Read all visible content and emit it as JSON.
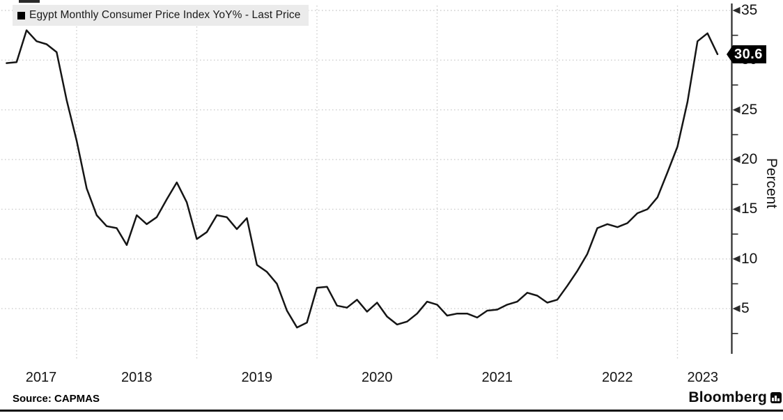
{
  "legend": {
    "label": "Egypt Monthly Consumer Price Index YoY% - Last Price",
    "marker_color": "#000000"
  },
  "last_price": {
    "label": "30.6"
  },
  "y_axis_title": "Percent",
  "footer": {
    "source": "Source: CAPMAS",
    "brand": "Bloomberg",
    "brand_icon": "bloomberg-terminal-icon"
  },
  "colors": {
    "line": "#151515",
    "grid": "#cccccc",
    "axis": "#2b2b2b",
    "legend_bg": "#ebebeb",
    "badge_bg": "#000000",
    "badge_text": "#ffffff"
  },
  "chart_data": {
    "type": "line",
    "title": "Egypt Monthly Consumer Price Index YoY% - Last Price",
    "xlabel": "",
    "ylabel": "Percent",
    "frequency": "monthly",
    "start_month": "2017-05",
    "end_month": "2023-04",
    "values": [
      29.7,
      29.8,
      33.0,
      31.9,
      31.6,
      30.8,
      26.0,
      21.9,
      17.1,
      14.4,
      13.3,
      13.1,
      11.4,
      14.4,
      13.5,
      14.2,
      16.0,
      17.7,
      15.7,
      12.0,
      12.7,
      14.4,
      14.2,
      13.0,
      14.1,
      9.4,
      8.7,
      7.5,
      4.8,
      3.1,
      3.6,
      7.1,
      7.2,
      5.3,
      5.1,
      5.9,
      4.7,
      5.6,
      4.2,
      3.4,
      3.7,
      4.5,
      5.7,
      5.4,
      4.3,
      4.5,
      4.5,
      4.1,
      4.8,
      4.9,
      5.4,
      5.7,
      6.6,
      6.3,
      5.6,
      5.9,
      7.3,
      8.8,
      10.5,
      13.1,
      13.5,
      13.2,
      13.6,
      14.6,
      15.0,
      16.2,
      18.7,
      21.3,
      25.8,
      31.9,
      32.7,
      30.6
    ],
    "last_value": 30.6,
    "yticks": [
      5,
      10,
      15,
      20,
      25,
      30,
      35
    ],
    "minor_ytick_step": 2.5,
    "ylim": [
      0.5,
      35.5
    ],
    "xtick_years": [
      2017,
      2018,
      2019,
      2020,
      2021,
      2022,
      2023
    ],
    "grid": "dotted, horizontal at labeled y ticks and vertical at year boundaries",
    "legend_position": "top-left",
    "y_axis_position": "right",
    "source": "CAPMAS"
  }
}
